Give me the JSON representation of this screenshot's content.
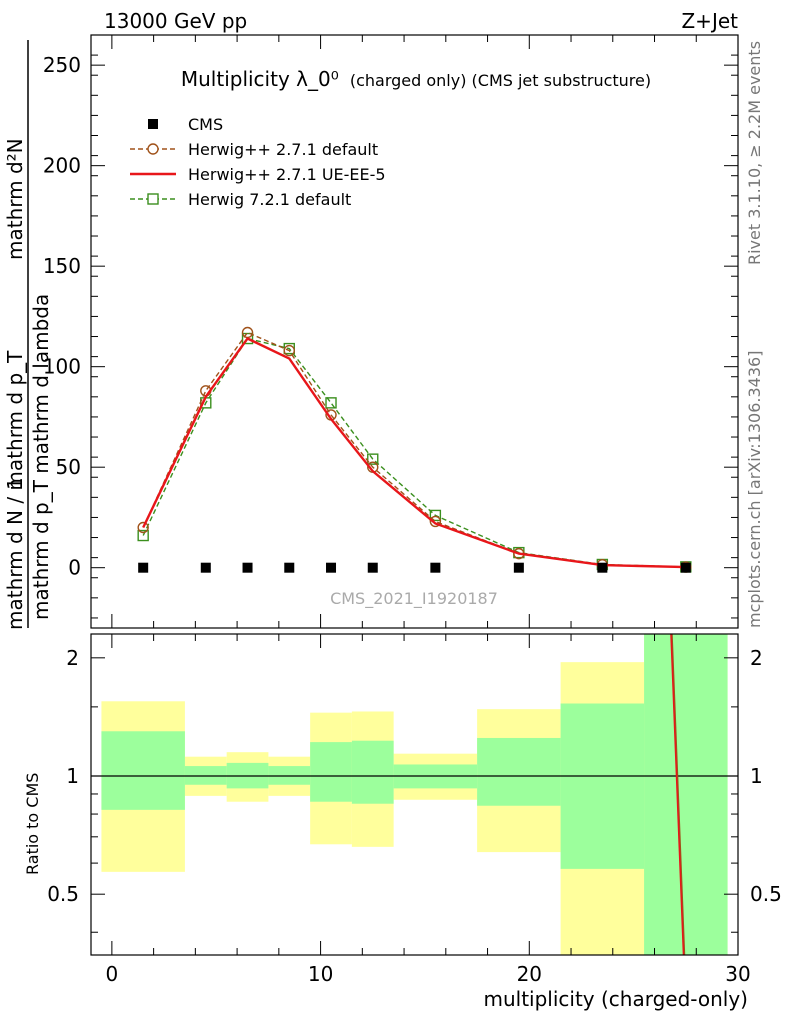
{
  "header": {
    "left": "13000 GeV pp",
    "right": "Z+Jet"
  },
  "side_labels": {
    "rivet": "Rivet 3.1.10, ≥ 2.2M events",
    "mcplots": "mcplots.cern.ch [arXiv:1306.3436]"
  },
  "colors": {
    "cms": "#000000",
    "herwig_default": "#a0521a",
    "herwig_ueee5": "#e8161a",
    "herwig72": "#3b8f1e",
    "band_inner": "#9cff9c",
    "band_outer": "#ffff9c"
  },
  "chart_data": [
    {
      "type": "line",
      "title": "Multiplicity λ_0⁰",
      "title_suffix": "(charged only) (CMS jet substructure)",
      "watermark": "CMS_2021_I1920187",
      "ylabel": "1 / mathrm d N / mathrm d p_T mathrm d N / mathrm d p_T mathrm d lambda",
      "ylabel_top": "mathrm d²N",
      "ylabel_bottom": "mathrm d p_T mathrm d lambda",
      "ylabel_num": "1",
      "ylabel_den": "mathrm d N / mathrm d p_T",
      "xlim": [
        -1,
        30
      ],
      "ylim": [
        -30,
        265
      ],
      "yticks": [
        0,
        50,
        100,
        150,
        200,
        250
      ],
      "legend_position": "top-left",
      "x": [
        1.5,
        4.5,
        6.5,
        8.5,
        10.5,
        12.5,
        15.5,
        19.5,
        23.5,
        27.5
      ],
      "series": [
        {
          "name": "CMS",
          "style": "markers",
          "values": [
            0,
            0,
            0,
            0,
            0,
            0,
            0,
            0,
            0,
            0
          ]
        },
        {
          "name": "Herwig++ 2.7.1 default",
          "style": "dashed-circle",
          "values": [
            20,
            88,
            117,
            108,
            76,
            50,
            23,
            7,
            1.5,
            0.3
          ]
        },
        {
          "name": "Herwig++ 2.7.1 UE-EE-5",
          "style": "solid",
          "values": [
            20,
            85,
            114,
            104,
            74,
            48,
            22,
            7,
            1.3,
            0.3
          ]
        },
        {
          "name": "Herwig 7.2.1 default",
          "style": "dashed-square",
          "values": [
            16,
            82,
            114,
            109,
            82,
            54,
            26,
            7.5,
            1.6,
            0.4
          ]
        }
      ]
    },
    {
      "type": "area",
      "xlabel": "multiplicity (charged-only)",
      "ylabel": "Ratio to CMS",
      "xlim": [
        -1,
        30
      ],
      "ylim": [
        0.35,
        2.3
      ],
      "log_y": true,
      "xticks": [
        0,
        10,
        20,
        30
      ],
      "yticks": [
        0.5,
        1,
        2
      ],
      "bins": [
        {
          "lo": -0.5,
          "hi": 3.5,
          "inner": [
            0.82,
            1.3
          ],
          "outer": [
            0.57,
            1.55
          ]
        },
        {
          "lo": 3.5,
          "hi": 5.5,
          "inner": [
            0.95,
            1.06
          ],
          "outer": [
            0.89,
            1.12
          ]
        },
        {
          "lo": 5.5,
          "hi": 7.5,
          "inner": [
            0.93,
            1.08
          ],
          "outer": [
            0.86,
            1.15
          ]
        },
        {
          "lo": 7.5,
          "hi": 9.5,
          "inner": [
            0.95,
            1.06
          ],
          "outer": [
            0.89,
            1.12
          ]
        },
        {
          "lo": 9.5,
          "hi": 11.5,
          "inner": [
            0.86,
            1.22
          ],
          "outer": [
            0.67,
            1.45
          ]
        },
        {
          "lo": 11.5,
          "hi": 13.5,
          "inner": [
            0.85,
            1.23
          ],
          "outer": [
            0.66,
            1.46
          ]
        },
        {
          "lo": 13.5,
          "hi": 17.5,
          "inner": [
            0.93,
            1.07
          ],
          "outer": [
            0.87,
            1.14
          ]
        },
        {
          "lo": 17.5,
          "hi": 21.5,
          "inner": [
            0.84,
            1.25
          ],
          "outer": [
            0.64,
            1.48
          ]
        },
        {
          "lo": 21.5,
          "hi": 25.5,
          "inner": [
            0.58,
            1.53
          ],
          "outer": [
            0.35,
            1.95
          ]
        },
        {
          "lo": 25.5,
          "hi": 29.5,
          "inner": [
            0.35,
            2.3
          ],
          "outer": [
            0.35,
            2.3
          ]
        }
      ],
      "ratio_line": {
        "x": [
          26.8,
          27.4
        ],
        "y": [
          2.3,
          0.35
        ]
      }
    }
  ]
}
